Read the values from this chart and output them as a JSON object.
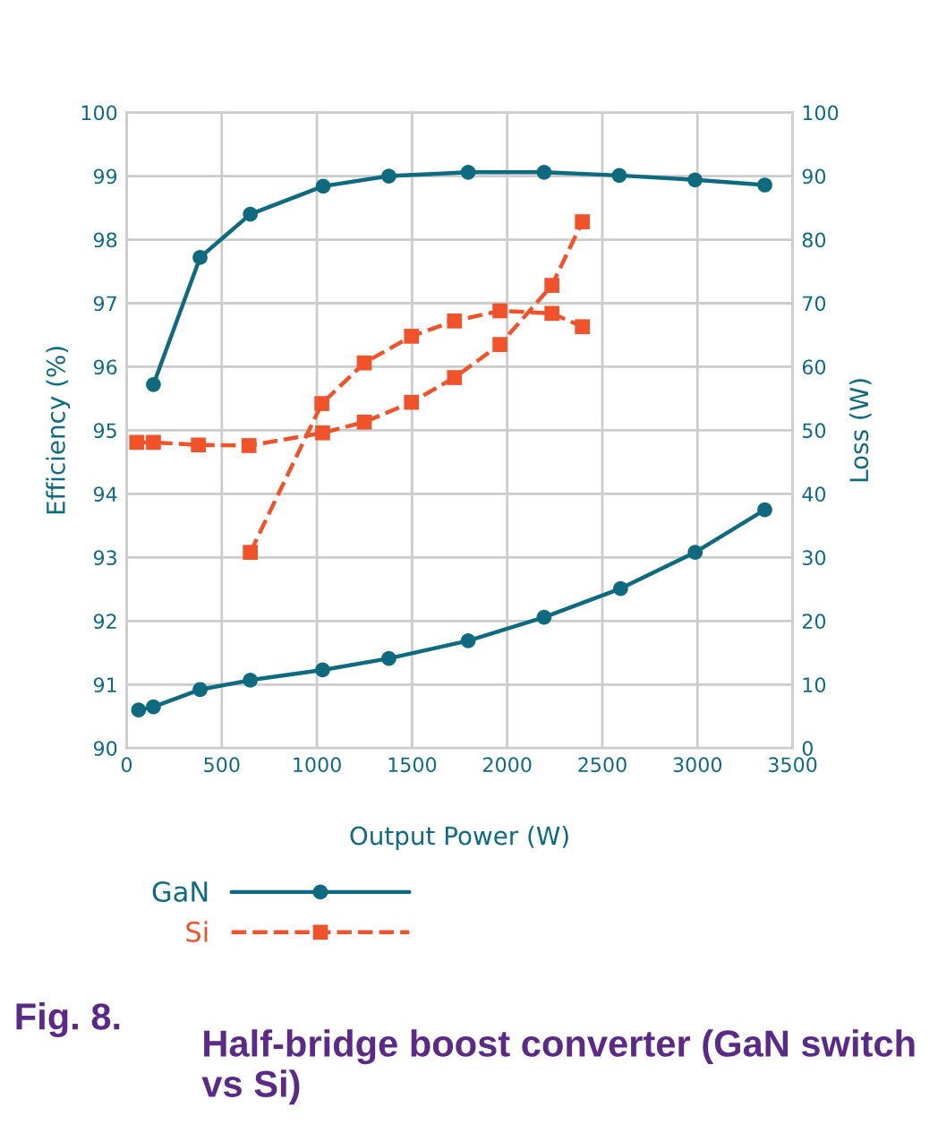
{
  "chart_data": {
    "type": "line",
    "title": "Half-bridge boost converter (GaN switch vs Si)",
    "xlabel": "Output Power (W)",
    "ylabel": "Efficiency (%)",
    "y2label": "Loss (W)",
    "annotations": [
      "Fig. 8."
    ],
    "xlim": [
      0,
      3500
    ],
    "xticks": [
      0,
      500,
      1000,
      1500,
      2000,
      2500,
      3000,
      3500
    ],
    "ylim": [
      90,
      100
    ],
    "yticks": [
      90,
      91,
      92,
      93,
      94,
      95,
      96,
      97,
      98,
      99,
      100
    ],
    "y2lim": [
      0,
      100
    ],
    "y2ticks": [
      0,
      10,
      20,
      30,
      40,
      50,
      60,
      70,
      80,
      90,
      100
    ],
    "grid": true,
    "legend": "bottom",
    "series": [
      {
        "name": "GaN",
        "color": "#0e6a7e",
        "marker": "circle",
        "line_style": "solid",
        "x": [
          141,
          386,
          650,
          1033,
          1378,
          1795,
          2194,
          2589,
          2987,
          3354
        ],
        "values": [
          95.72,
          97.72,
          98.4,
          98.84,
          99.0,
          99.06,
          99.06,
          99.01,
          98.94,
          98.86
        ]
      },
      {
        "color": "#0e6a7e",
        "marker": "circle",
        "line_style": "solid",
        "axis": "y2",
        "x": [
          63,
          141,
          386,
          650,
          1030,
          1378,
          1795,
          2194,
          2596,
          2988,
          3354
        ],
        "values": [
          6,
          6.5,
          9.2,
          10.7,
          12.3,
          14.1,
          16.9,
          20.6,
          25.1,
          30.8,
          37.5
        ]
      },
      {
        "name": "Si",
        "color": "#f0522a",
        "marker": "square",
        "line_style": "dashed",
        "x": [
          650,
          1026,
          1249,
          1497,
          1723,
          1962,
          2235,
          2395
        ],
        "values": [
          93.08,
          95.42,
          96.06,
          96.48,
          96.72,
          96.88,
          96.84,
          96.63
        ]
      },
      {
        "color": "#f0522a",
        "marker": "square",
        "line_style": "dashed",
        "axis": "y2",
        "x": [
          53,
          141,
          377,
          643,
          1030,
          1249,
          1497,
          1723,
          1962,
          2235,
          2395
        ],
        "values": [
          48.1,
          48.1,
          47.7,
          47.6,
          49.6,
          51.3,
          54.4,
          58.3,
          63.5,
          72.8,
          82.8
        ]
      }
    ]
  }
}
